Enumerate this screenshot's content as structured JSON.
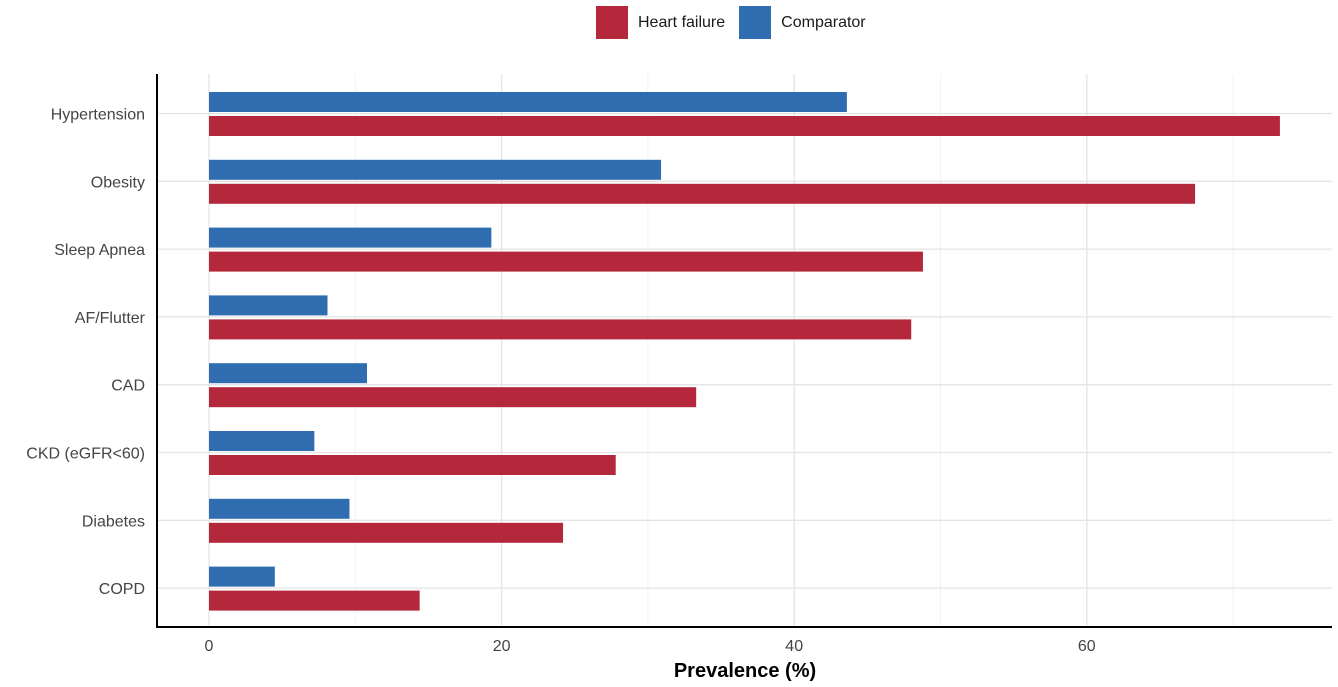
{
  "legend": {
    "series": [
      {
        "name": "Heart failure",
        "color": "#b5283b"
      },
      {
        "name": "Comparator",
        "color": "#2f6db0"
      }
    ]
  },
  "chart_data": {
    "type": "bar",
    "orientation": "horizontal",
    "title": "",
    "xlabel": "Prevalence (%)",
    "ylabel": "",
    "xlim": [
      0,
      75
    ],
    "xticks": [
      0,
      20,
      40,
      60
    ],
    "grid": true,
    "legend_position": "top",
    "categories": [
      "Hypertension",
      "Obesity",
      "Sleep Apnea",
      "AF/Flutter",
      "CAD",
      "CKD (eGFR<60)",
      "Diabetes",
      "COPD"
    ],
    "series": [
      {
        "name": "Heart failure",
        "color": "#b5283b",
        "values": [
          73.2,
          67.4,
          48.8,
          48.0,
          33.3,
          27.8,
          24.2,
          14.4
        ]
      },
      {
        "name": "Comparator",
        "color": "#2f6db0",
        "values": [
          43.6,
          30.9,
          19.3,
          8.1,
          10.8,
          7.2,
          9.6,
          4.5
        ]
      }
    ]
  }
}
